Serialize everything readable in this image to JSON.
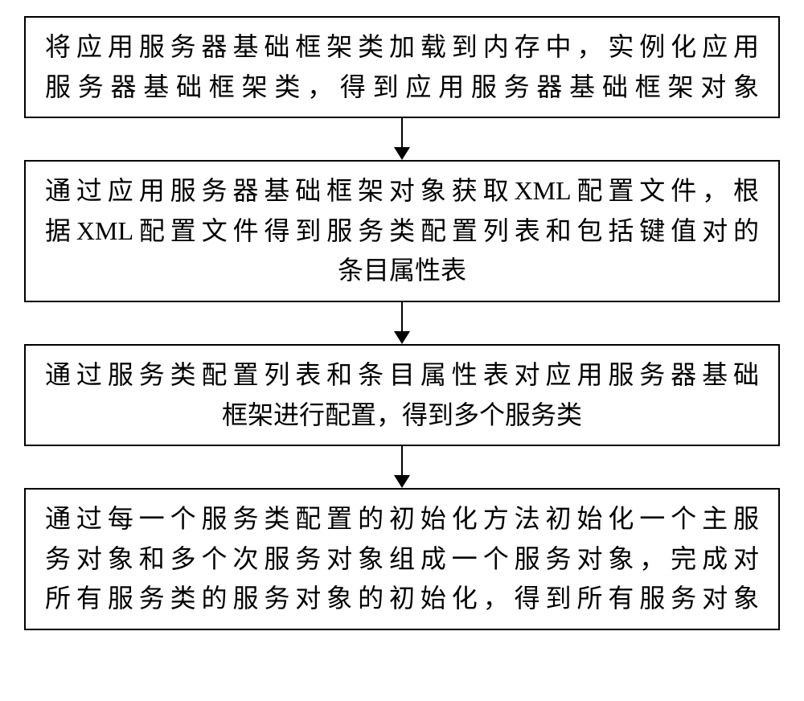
{
  "flowchart": {
    "type": "flowchart",
    "direction": "vertical",
    "background_color": "#ffffff",
    "node_border_color": "#000000",
    "node_border_width": 2,
    "node_fill": "#ffffff",
    "text_color": "#000000",
    "font_family": "KaiTi",
    "font_size_pt": 24,
    "arrow_color": "#000000",
    "arrow_shaft_width": 2,
    "arrow_head_width": 20,
    "arrow_head_height": 16,
    "arrow_gap_height": 52,
    "nodes": [
      {
        "id": "n1",
        "lines": [
          "将应用服务器基础框架类加载到内存中，实例化应用",
          "服务器基础框架类，得到应用服务器基础框架对象"
        ],
        "line_align": [
          "justify",
          "justify"
        ]
      },
      {
        "id": "n2",
        "lines": [
          "通过应用服务器基础框架对象获取XML配置文件，根",
          "据XML配置文件得到服务类配置列表和包括键值对的",
          "条目属性表"
        ],
        "line_align": [
          "justify",
          "justify",
          "center"
        ]
      },
      {
        "id": "n3",
        "lines": [
          "通过服务类配置列表和条目属性表对应用服务器基础",
          "框架进行配置，得到多个服务类"
        ],
        "line_align": [
          "justify",
          "center"
        ]
      },
      {
        "id": "n4",
        "lines": [
          "通过每一个服务类配置的初始化方法初始化一个主服",
          "务对象和多个次服务对象组成一个服务对象，完成对",
          "所有服务类的服务对象的初始化，得到所有服务对象"
        ],
        "line_align": [
          "justify",
          "justify",
          "justify"
        ]
      }
    ],
    "edges": [
      {
        "from": "n1",
        "to": "n2"
      },
      {
        "from": "n2",
        "to": "n3"
      },
      {
        "from": "n3",
        "to": "n4"
      }
    ]
  }
}
